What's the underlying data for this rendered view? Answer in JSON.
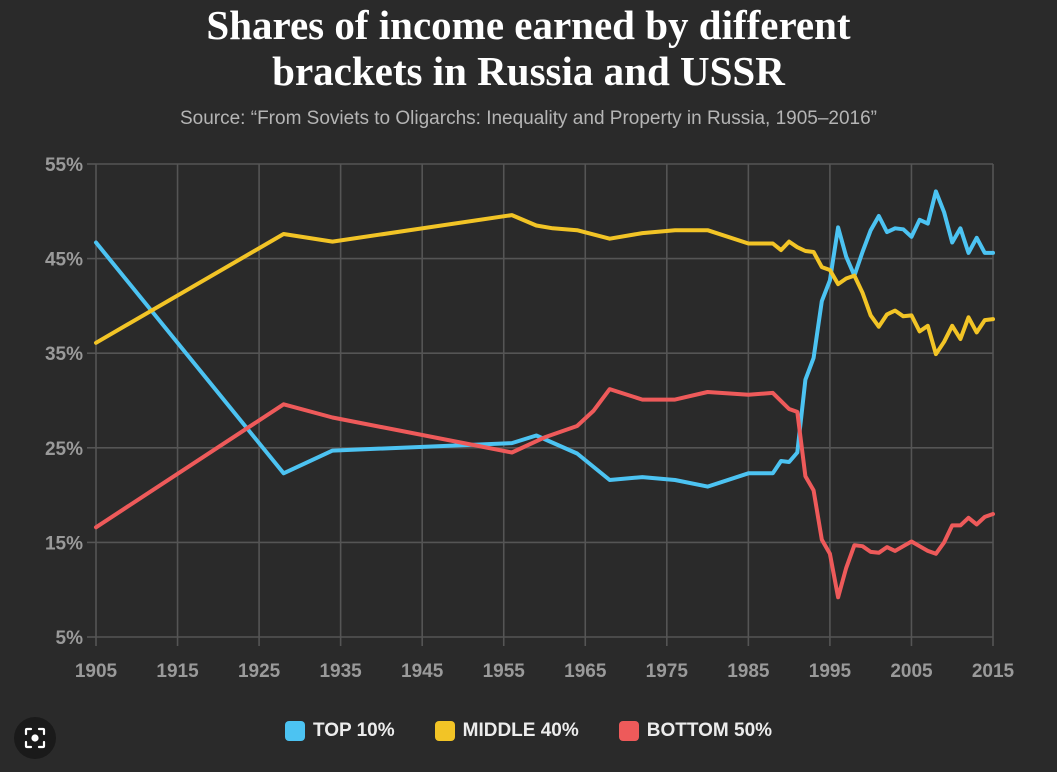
{
  "title_line1": "Shares of income earned by different",
  "title_line2": "brackets in Russia and USSR",
  "subtitle": "Source: “From Soviets to Oligarchs: Inequality and Property in Russia, 1905–2016”",
  "colors": {
    "top10": "#4cc3f2",
    "middle40": "#f2c426",
    "bottom50": "#ee5a5a",
    "background": "#2a2a2a",
    "grid": "#555555"
  },
  "chart_data": {
    "type": "line",
    "title": "Shares of income earned by different brackets in Russia and USSR",
    "subtitle": "Source: “From Soviets to Oligarchs: Inequality and Property in Russia, 1905–2016”",
    "xlim": [
      1905,
      2015
    ],
    "ylim": [
      5,
      55
    ],
    "x_ticks": [
      1905,
      1915,
      1925,
      1935,
      1945,
      1955,
      1965,
      1975,
      1985,
      1995,
      2005,
      2015
    ],
    "y_ticks": [
      5,
      15,
      25,
      35,
      45,
      55
    ],
    "y_tick_labels": [
      "5%",
      "15%",
      "25%",
      "35%",
      "45%",
      "55%"
    ],
    "grid": true,
    "legend_position": "bottom",
    "series": [
      {
        "name": "TOP 10%",
        "color": "#4cc3f2",
        "x": [
          1905,
          1928,
          1934,
          1956,
          1959,
          1964,
          1968,
          1972,
          1976,
          1980,
          1985,
          1988,
          1989,
          1990,
          1991,
          1992,
          1993,
          1994,
          1995,
          1996,
          1997,
          1998,
          1999,
          2000,
          2001,
          2002,
          2003,
          2004,
          2005,
          2006,
          2007,
          2008,
          2009,
          2010,
          2011,
          2012,
          2013,
          2014,
          2015
        ],
        "values": [
          46.7,
          22.3,
          24.7,
          25.5,
          26.3,
          24.4,
          21.6,
          21.9,
          21.6,
          20.9,
          22.3,
          22.3,
          23.6,
          23.5,
          24.5,
          32.2,
          34.5,
          40.5,
          42.7,
          48.3,
          45.2,
          43.2,
          45.7,
          48.0,
          49.5,
          47.8,
          48.2,
          48.1,
          47.3,
          49.1,
          48.7,
          52.1,
          49.9,
          46.7,
          48.2,
          45.6,
          47.2,
          45.6,
          45.6
        ]
      },
      {
        "name": "MIDDLE 40%",
        "color": "#f2c426",
        "x": [
          1905,
          1928,
          1934,
          1956,
          1959,
          1961,
          1964,
          1968,
          1972,
          1976,
          1980,
          1985,
          1988,
          1989,
          1990,
          1991,
          1992,
          1993,
          1994,
          1995,
          1996,
          1997,
          1998,
          1999,
          2000,
          2001,
          2002,
          2003,
          2004,
          2005,
          2006,
          2007,
          2008,
          2009,
          2010,
          2011,
          2012,
          2013,
          2014,
          2015
        ],
        "values": [
          36.1,
          47.6,
          46.8,
          49.6,
          48.5,
          48.2,
          48.0,
          47.1,
          47.7,
          48.0,
          48.0,
          46.6,
          46.6,
          45.9,
          46.8,
          46.2,
          45.8,
          45.7,
          44.1,
          43.8,
          42.3,
          42.9,
          43.2,
          41.4,
          39.0,
          37.8,
          39.1,
          39.5,
          38.9,
          39.0,
          37.3,
          37.9,
          34.9,
          36.2,
          37.9,
          36.5,
          38.8,
          37.2,
          38.5,
          38.6
        ]
      },
      {
        "name": "BOTTOM 50%",
        "color": "#ee5a5a",
        "x": [
          1905,
          1928,
          1934,
          1956,
          1960,
          1964,
          1966,
          1968,
          1972,
          1976,
          1980,
          1985,
          1988,
          1990,
          1991,
          1992,
          1993,
          1994,
          1995,
          1996,
          1997,
          1998,
          1999,
          2000,
          2001,
          2002,
          2003,
          2004,
          2005,
          2006,
          2007,
          2008,
          2009,
          2010,
          2011,
          2012,
          2013,
          2014,
          2015
        ],
        "values": [
          16.6,
          29.6,
          28.2,
          24.5,
          26.1,
          27.3,
          28.9,
          31.2,
          30.1,
          30.1,
          30.9,
          30.6,
          30.8,
          29.1,
          28.8,
          22.0,
          20.5,
          15.3,
          13.8,
          9.2,
          12.3,
          14.7,
          14.6,
          14.0,
          13.9,
          14.5,
          14.1,
          14.6,
          15.1,
          14.6,
          14.1,
          13.8,
          15.0,
          16.8,
          16.8,
          17.6,
          16.9,
          17.7,
          18.0
        ]
      }
    ]
  },
  "legend": [
    {
      "label": "TOP 10%",
      "color": "#4cc3f2"
    },
    {
      "label": "MIDDLE 40%",
      "color": "#f2c426"
    },
    {
      "label": "BOTTOM 50%",
      "color": "#ee5a5a"
    }
  ],
  "lens_button": {
    "icon": "visual-search-icon"
  }
}
